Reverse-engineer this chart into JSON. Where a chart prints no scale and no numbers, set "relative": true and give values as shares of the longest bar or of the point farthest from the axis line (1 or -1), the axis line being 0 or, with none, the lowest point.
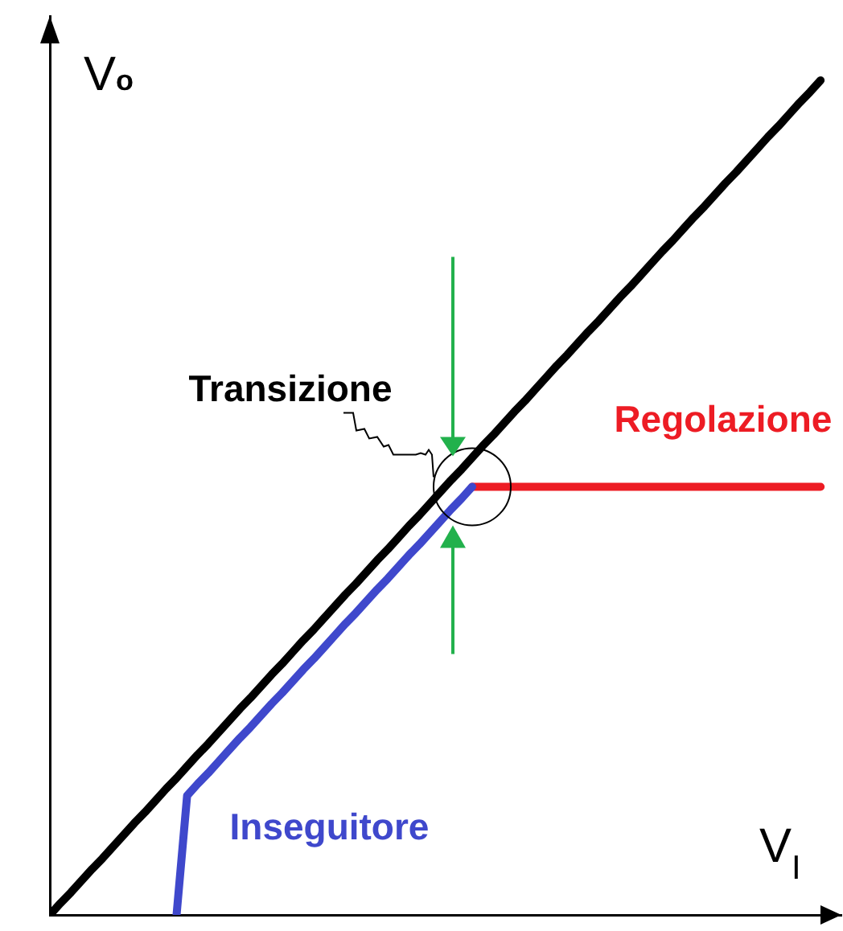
{
  "chart_data": {
    "type": "line",
    "xlabel": "V$_{I}$",
    "ylabel": "V$_{o}$",
    "relative": true,
    "categories": [
      null,
      null,
      null,
      null,
      null,
      null,
      null,
      null,
      null,
      null,
      null,
      null,
      null,
      null,
      null,
      null,
      null,
      null,
      null,
      null,
      null,
      null,
      null,
      null,
      null,
      null,
      null,
      null,
      null,
      null,
      null,
      null,
      null,
      null,
      null,
      null,
      null,
      null,
      null,
      null,
      null,
      null,
      null,
      null,
      null,
      null,
      null,
      null,
      null,
      null,
      null,
      null,
      null,
      null,
      null,
      null,
      null,
      null,
      null,
      null,
      null,
      null,
      null,
      null,
      null,
      null,
      null,
      null,
      null,
      null,
      null,
      null,
      null,
      null
    ],
    "annotations": [
      "Transizione"
    ],
    "series": [
      {
        "color": "#000000",
        "values": [
          0,
          0.014,
          0.027,
          0.041,
          0.055,
          0.068,
          0.082,
          0.096,
          0.11,
          0.123,
          0.137,
          0.151,
          0.164,
          0.178,
          0.192,
          0.205,
          0.219,
          0.233,
          0.247,
          0.26,
          0.274,
          0.288,
          0.301,
          0.315,
          0.329,
          0.342,
          0.356,
          0.37,
          0.384,
          0.397,
          0.411,
          0.425,
          0.438,
          0.452,
          0.466,
          0.479,
          0.493,
          0.507,
          0.521,
          0.534,
          0.548,
          0.562,
          0.575,
          0.589,
          0.603,
          0.616,
          0.63,
          0.644,
          0.658,
          0.671,
          0.685,
          0.699,
          0.712,
          0.726,
          0.74,
          0.753,
          0.767,
          0.781,
          0.795,
          0.808,
          0.822,
          0.836,
          0.849,
          0.863,
          0.877,
          0.89,
          0.904,
          0.918,
          0.932,
          0.945,
          0.959,
          0.973,
          0.986,
          1
        ]
      },
      {
        "name": "Inseguitore",
        "color": "#3f48cc",
        "values": [
          null,
          null,
          null,
          null,
          null,
          null,
          null,
          null,
          null,
          null,
          null,
          null,
          0,
          0.143,
          0.157,
          0.17,
          0.184,
          0.198,
          0.212,
          0.225,
          0.239,
          0.253,
          0.266,
          0.28,
          0.294,
          0.307,
          0.321,
          0.335,
          0.349,
          0.362,
          0.376,
          0.39,
          0.403,
          0.417,
          0.431,
          0.444,
          0.458,
          0.472,
          0.486,
          0.499,
          0.513,
          null,
          null,
          null,
          null,
          null,
          null,
          null,
          null,
          null,
          null,
          null,
          null,
          null,
          null,
          null,
          null,
          null,
          null,
          null,
          null,
          null,
          null,
          null,
          null,
          null,
          null,
          null,
          null,
          null,
          null,
          null,
          null,
          null
        ]
      },
      {
        "name": "Regolazione",
        "color": "#ed1c24",
        "values": [
          null,
          null,
          null,
          null,
          null,
          null,
          null,
          null,
          null,
          null,
          null,
          null,
          null,
          null,
          null,
          null,
          null,
          null,
          null,
          null,
          null,
          null,
          null,
          null,
          null,
          null,
          null,
          null,
          null,
          null,
          null,
          null,
          null,
          null,
          null,
          null,
          null,
          null,
          null,
          null,
          0.513,
          0.513,
          0.513,
          0.513,
          0.513,
          0.513,
          0.513,
          0.513,
          0.513,
          0.513,
          0.513,
          0.513,
          0.513,
          0.513,
          0.513,
          0.513,
          0.513,
          0.513,
          0.513,
          0.513,
          0.513,
          0.513,
          0.513,
          0.513,
          0.513,
          0.513,
          0.513,
          0.513,
          0.513,
          0.513,
          0.513,
          0.513,
          0.513,
          0.513
        ]
      }
    ]
  }
}
